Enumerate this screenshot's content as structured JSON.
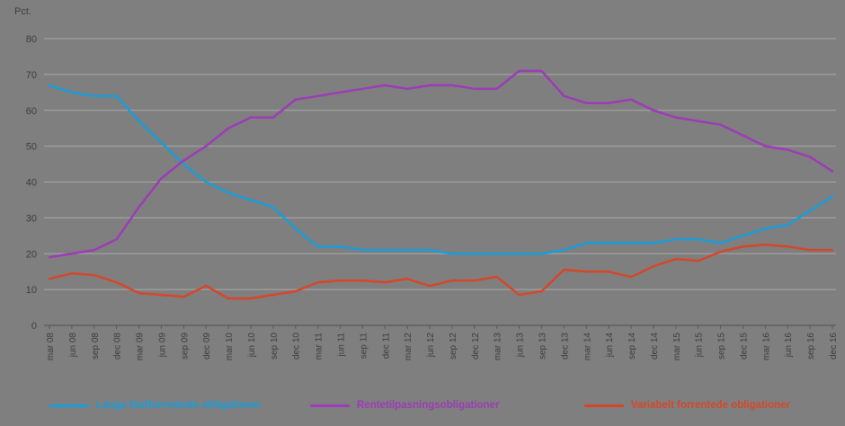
{
  "chart_data": {
    "type": "line",
    "title": "Pct.",
    "xlabel": "",
    "ylabel": "Pct.",
    "ylim": [
      0,
      80
    ],
    "ytick_step": 10,
    "grid": true,
    "legend_position": "bottom",
    "categories": [
      "mar 08",
      "jun 08",
      "sep 08",
      "dec 08",
      "mar 09",
      "jun 09",
      "sep 09",
      "dec 09",
      "mar 10",
      "jun 10",
      "sep 10",
      "dec 10",
      "mar 11",
      "jun 11",
      "sep 11",
      "dec 11",
      "mar 12",
      "jun 12",
      "sep 12",
      "dec 12",
      "mar 13",
      "jun 13",
      "sep 13",
      "dec 13",
      "mar 14",
      "jun 14",
      "sep 14",
      "dec 14",
      "mar 15",
      "jun 15",
      "sep 15",
      "dec 15",
      "mar 16",
      "jun 16",
      "sep 16",
      "dec 16"
    ],
    "series": [
      {
        "name": "Lange fastforrentede obligationer",
        "color": "#1a9dd9",
        "values": [
          67,
          65,
          64,
          64,
          57,
          51,
          45,
          40,
          37,
          35,
          33,
          27,
          22,
          22,
          21,
          21,
          21,
          21,
          20,
          20,
          20,
          20,
          20,
          21,
          23,
          23,
          23,
          23,
          24,
          24,
          23,
          25,
          27,
          28,
          32,
          36
        ]
      },
      {
        "name": "Rentetilpasningsobligationer",
        "color": "#9d3bb8",
        "values": [
          19,
          20,
          21,
          24,
          33,
          41,
          46,
          50,
          55,
          58,
          58,
          63,
          64,
          65,
          66,
          67,
          66,
          67,
          67,
          66,
          66,
          71,
          71,
          64,
          62,
          62,
          63,
          60,
          58,
          57,
          56,
          53,
          50,
          49,
          47,
          43
        ]
      },
      {
        "name": "Variabelt forrentede obligationer",
        "color": "#d5472a",
        "values": [
          13,
          14.5,
          14,
          12,
          9,
          8.5,
          8,
          11,
          7.5,
          7.5,
          8.5,
          9.5,
          12,
          12.5,
          12.5,
          12,
          13,
          11,
          12.5,
          12.5,
          13.5,
          8.5,
          9.5,
          15.5,
          15,
          15,
          13.5,
          16.5,
          18.5,
          18,
          20.5,
          22,
          22.5,
          22,
          21,
          21
        ]
      }
    ]
  },
  "legend": {
    "items": [
      {
        "label": "Lange fastforrentede obligationer"
      },
      {
        "label": "Rentetilpasningsobligationer"
      },
      {
        "label": "Variabelt forrentede obligationer"
      }
    ]
  }
}
